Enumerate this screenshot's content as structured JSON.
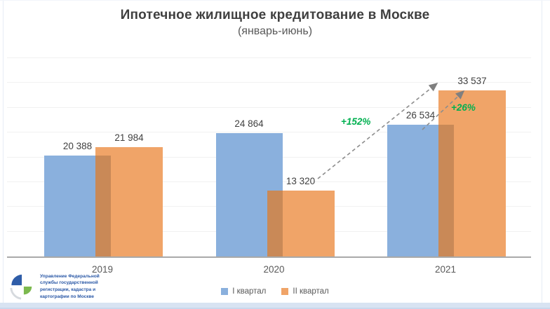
{
  "title": "Ипотечное жилищное кредитование в Москве",
  "subtitle": "(январь-июнь)",
  "chart_data": {
    "type": "bar",
    "categories": [
      "2019",
      "2020",
      "2021"
    ],
    "series": [
      {
        "name": "I квартал",
        "color": "#8ab0dd",
        "values": [
          20388,
          24864,
          26534
        ],
        "labels": [
          "20 388",
          "24 864",
          "26 534"
        ]
      },
      {
        "name": "II квартал",
        "color": "#f0a468",
        "values": [
          21984,
          13320,
          33537
        ],
        "labels": [
          "21 984",
          "13 320",
          "33 537"
        ]
      }
    ],
    "overlap_color": "#c98957",
    "ylim": [
      0,
      40000
    ],
    "gridline_step": 5000,
    "grid": true,
    "legend_position": "bottom",
    "annotations": [
      {
        "text": "+152%",
        "color": "#00b050",
        "meaning": "growth of II quarter 2020 to II quarter 2021"
      },
      {
        "text": "+26%",
        "color": "#00b050",
        "meaning": "growth of I quarter 2021 to II quarter 2021"
      }
    ]
  },
  "legend": {
    "items": [
      {
        "label": "I квартал",
        "color": "#8ab0dd"
      },
      {
        "label": "II квартал",
        "color": "#f0a468"
      }
    ]
  },
  "logo": {
    "lines": [
      "Управление Федеральной",
      "службы государственной",
      "регистрации, кадастра и",
      "картографии по Москве"
    ],
    "colors": {
      "blue": "#2f5da8",
      "green": "#7cb94e",
      "gray": "#d6dade"
    }
  }
}
